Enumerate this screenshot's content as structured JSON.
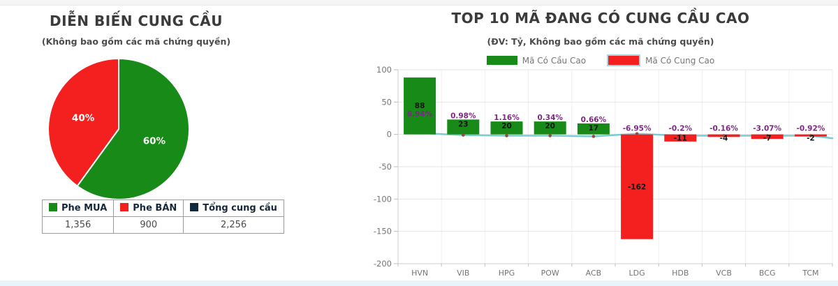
{
  "left_panel": {
    "title": "DIỄN BIẾN CUNG CẦU",
    "subtitle": "(Không bao gồm các mã chứng quyền)",
    "table": {
      "columns": [
        {
          "label": "Phe MUA",
          "swatch_color": "#178a17",
          "value": "1,356"
        },
        {
          "label": "Phe BÁN",
          "swatch_color": "#f42020",
          "value": "900"
        },
        {
          "label": "Tổng cung cầu",
          "swatch_color": "#132a3d",
          "value": "2,256"
        }
      ]
    }
  },
  "right_panel": {
    "title": "TOP 10 MÃ ĐANG CÓ CUNG CẦU CAO",
    "subtitle": "(ĐV: Tỷ, Không bao gồm các mã chứng quyền)",
    "legend": [
      {
        "label": "Mã Có Cầu Cao",
        "color": "#178a17",
        "border": "none"
      },
      {
        "label": "Mã Có Cung Cao",
        "color": "#f42020",
        "border": "#a5d9e2"
      }
    ]
  },
  "colors": {
    "green": "#178a17",
    "red": "#f42020",
    "navy": "#132a3d",
    "trend_line": "#79ccd1",
    "trend_marker": "#9c4a38",
    "pct_label": "#7b2982",
    "value_label": "#151515",
    "axis_text": "#757575",
    "grid": "#e6e6e6"
  },
  "chart_data": [
    {
      "type": "pie",
      "title": "DIỄN BIẾN CUNG CẦU",
      "labels": [
        "Phe MUA",
        "Phe BÁN"
      ],
      "values_pct": [
        60,
        40
      ],
      "values_abs": [
        1356,
        900
      ],
      "total": 2256,
      "slice_labels": [
        "60%",
        "40%"
      ],
      "colors": [
        "#178a17",
        "#f42020"
      ],
      "layout": "green starts at 12 o'clock, clockwise; red fills remainder"
    },
    {
      "type": "bar",
      "title": "TOP 10 MÃ ĐANG CÓ CUNG CẦU CAO",
      "unit": "Tỷ",
      "categories": [
        "HVN",
        "VIB",
        "HPG",
        "POW",
        "ACB",
        "LDG",
        "HDB",
        "VCB",
        "BCG",
        "TCM"
      ],
      "values": [
        88,
        23,
        20,
        20,
        17,
        -162,
        -11,
        -4,
        -7,
        -2
      ],
      "pct_labels": [
        "6.94%",
        "0.98%",
        "1.16%",
        "0.34%",
        "0.66%",
        "-6.95%",
        "-0.2%",
        "-0.16%",
        "-3.07%",
        "-0.92%"
      ],
      "series_colors": [
        "#178a17",
        "#178a17",
        "#178a17",
        "#178a17",
        "#178a17",
        "#f42020",
        "#f42020",
        "#f42020",
        "#f42020",
        "#f42020"
      ],
      "ylim": [
        -200,
        100
      ],
      "yticks": [
        100,
        50,
        0,
        -50,
        -100,
        -150,
        -200
      ],
      "grid": true,
      "legend_position": "top",
      "trend_line": {
        "values": [
          2,
          -1,
          -2,
          -2,
          -3,
          1,
          -2,
          -2,
          -2,
          -2
        ],
        "extend_right_value": -6
      }
    }
  ]
}
